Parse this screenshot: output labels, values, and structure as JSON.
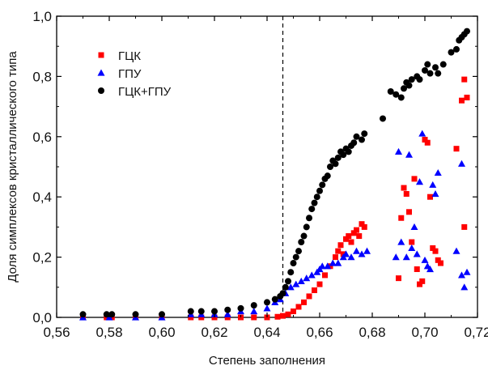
{
  "chart_data": {
    "type": "scatter",
    "xlabel": "Степень заполнения",
    "ylabel": "Доля симплексов кристаллического типа",
    "xlim": [
      0.56,
      0.72
    ],
    "ylim": [
      0.0,
      1.0
    ],
    "x_ticks": [
      "0,56",
      "0,58",
      "0,60",
      "0,62",
      "0,64",
      "0,66",
      "0,68",
      "0,70",
      "0,72"
    ],
    "y_ticks": [
      "0,0",
      "0,2",
      "0,4",
      "0,6",
      "0,8",
      "1,0"
    ],
    "grid": false,
    "legend_position": "top-left",
    "reference_line": {
      "x": 0.646,
      "style": "dashed",
      "color": "#000000"
    },
    "series": [
      {
        "name": "ГЦК",
        "marker": "square",
        "color": "#ff0000",
        "points": [
          [
            0.57,
            0.0
          ],
          [
            0.579,
            0.0
          ],
          [
            0.581,
            0.0
          ],
          [
            0.59,
            0.0
          ],
          [
            0.6,
            0.0
          ],
          [
            0.611,
            0.0
          ],
          [
            0.615,
            0.0
          ],
          [
            0.62,
            0.0
          ],
          [
            0.625,
            0.0
          ],
          [
            0.63,
            0.0
          ],
          [
            0.635,
            0.0
          ],
          [
            0.64,
            0.0
          ],
          [
            0.644,
            0.002
          ],
          [
            0.646,
            0.005
          ],
          [
            0.648,
            0.01
          ],
          [
            0.65,
            0.02
          ],
          [
            0.652,
            0.035
          ],
          [
            0.654,
            0.05
          ],
          [
            0.656,
            0.07
          ],
          [
            0.658,
            0.09
          ],
          [
            0.66,
            0.11
          ],
          [
            0.662,
            0.14
          ],
          [
            0.664,
            0.17
          ],
          [
            0.666,
            0.2
          ],
          [
            0.667,
            0.22
          ],
          [
            0.668,
            0.24
          ],
          [
            0.669,
            0.21
          ],
          [
            0.67,
            0.26
          ],
          [
            0.671,
            0.27
          ],
          [
            0.672,
            0.25
          ],
          [
            0.673,
            0.28
          ],
          [
            0.674,
            0.29
          ],
          [
            0.675,
            0.27
          ],
          [
            0.676,
            0.31
          ],
          [
            0.677,
            0.3
          ],
          [
            0.69,
            0.13
          ],
          [
            0.691,
            0.33
          ],
          [
            0.692,
            0.43
          ],
          [
            0.693,
            0.41
          ],
          [
            0.694,
            0.35
          ],
          [
            0.695,
            0.25
          ],
          [
            0.696,
            0.46
          ],
          [
            0.697,
            0.16
          ],
          [
            0.698,
            0.11
          ],
          [
            0.699,
            0.12
          ],
          [
            0.7,
            0.59
          ],
          [
            0.701,
            0.58
          ],
          [
            0.702,
            0.4
          ],
          [
            0.703,
            0.23
          ],
          [
            0.704,
            0.22
          ],
          [
            0.705,
            0.19
          ],
          [
            0.706,
            0.18
          ],
          [
            0.712,
            0.56
          ],
          [
            0.714,
            0.72
          ],
          [
            0.715,
            0.79
          ],
          [
            0.716,
            0.73
          ],
          [
            0.715,
            0.3
          ]
        ]
      },
      {
        "name": "ГПУ",
        "marker": "triangle",
        "color": "#0000ff",
        "points": [
          [
            0.57,
            0.0
          ],
          [
            0.58,
            0.0
          ],
          [
            0.59,
            0.0
          ],
          [
            0.6,
            0.0
          ],
          [
            0.611,
            0.01
          ],
          [
            0.615,
            0.01
          ],
          [
            0.62,
            0.01
          ],
          [
            0.625,
            0.01
          ],
          [
            0.63,
            0.02
          ],
          [
            0.635,
            0.02
          ],
          [
            0.64,
            0.03
          ],
          [
            0.643,
            0.05
          ],
          [
            0.645,
            0.06
          ],
          [
            0.647,
            0.08
          ],
          [
            0.649,
            0.1
          ],
          [
            0.651,
            0.11
          ],
          [
            0.653,
            0.12
          ],
          [
            0.655,
            0.13
          ],
          [
            0.657,
            0.14
          ],
          [
            0.659,
            0.15
          ],
          [
            0.66,
            0.16
          ],
          [
            0.661,
            0.17
          ],
          [
            0.663,
            0.17
          ],
          [
            0.665,
            0.18
          ],
          [
            0.667,
            0.18
          ],
          [
            0.669,
            0.2
          ],
          [
            0.67,
            0.21
          ],
          [
            0.672,
            0.2
          ],
          [
            0.674,
            0.22
          ],
          [
            0.676,
            0.21
          ],
          [
            0.678,
            0.22
          ],
          [
            0.689,
            0.2
          ],
          [
            0.69,
            0.55
          ],
          [
            0.691,
            0.25
          ],
          [
            0.693,
            0.2
          ],
          [
            0.694,
            0.54
          ],
          [
            0.695,
            0.23
          ],
          [
            0.696,
            0.3
          ],
          [
            0.697,
            0.21
          ],
          [
            0.698,
            0.45
          ],
          [
            0.699,
            0.61
          ],
          [
            0.7,
            0.19
          ],
          [
            0.701,
            0.17
          ],
          [
            0.702,
            0.16
          ],
          [
            0.703,
            0.44
          ],
          [
            0.704,
            0.41
          ],
          [
            0.705,
            0.48
          ],
          [
            0.712,
            0.22
          ],
          [
            0.714,
            0.51
          ],
          [
            0.715,
            0.1
          ],
          [
            0.716,
            0.15
          ],
          [
            0.714,
            0.14
          ]
        ]
      },
      {
        "name": "ГЦК+ГПУ",
        "marker": "circle",
        "color": "#000000",
        "points": [
          [
            0.57,
            0.01
          ],
          [
            0.579,
            0.01
          ],
          [
            0.581,
            0.01
          ],
          [
            0.59,
            0.01
          ],
          [
            0.6,
            0.01
          ],
          [
            0.611,
            0.02
          ],
          [
            0.615,
            0.02
          ],
          [
            0.62,
            0.02
          ],
          [
            0.625,
            0.025
          ],
          [
            0.63,
            0.03
          ],
          [
            0.635,
            0.04
          ],
          [
            0.64,
            0.05
          ],
          [
            0.643,
            0.06
          ],
          [
            0.645,
            0.07
          ],
          [
            0.646,
            0.08
          ],
          [
            0.647,
            0.1
          ],
          [
            0.648,
            0.12
          ],
          [
            0.649,
            0.15
          ],
          [
            0.65,
            0.18
          ],
          [
            0.651,
            0.2
          ],
          [
            0.652,
            0.22
          ],
          [
            0.653,
            0.25
          ],
          [
            0.654,
            0.27
          ],
          [
            0.655,
            0.3
          ],
          [
            0.656,
            0.33
          ],
          [
            0.657,
            0.36
          ],
          [
            0.658,
            0.38
          ],
          [
            0.659,
            0.4
          ],
          [
            0.66,
            0.42
          ],
          [
            0.661,
            0.44
          ],
          [
            0.662,
            0.46
          ],
          [
            0.663,
            0.47
          ],
          [
            0.664,
            0.5
          ],
          [
            0.665,
            0.52
          ],
          [
            0.666,
            0.51
          ],
          [
            0.667,
            0.53
          ],
          [
            0.668,
            0.55
          ],
          [
            0.669,
            0.54
          ],
          [
            0.67,
            0.56
          ],
          [
            0.671,
            0.55
          ],
          [
            0.672,
            0.57
          ],
          [
            0.673,
            0.58
          ],
          [
            0.674,
            0.6
          ],
          [
            0.676,
            0.59
          ],
          [
            0.677,
            0.61
          ],
          [
            0.684,
            0.66
          ],
          [
            0.687,
            0.75
          ],
          [
            0.689,
            0.74
          ],
          [
            0.691,
            0.73
          ],
          [
            0.692,
            0.76
          ],
          [
            0.693,
            0.78
          ],
          [
            0.694,
            0.77
          ],
          [
            0.695,
            0.79
          ],
          [
            0.697,
            0.8
          ],
          [
            0.698,
            0.79
          ],
          [
            0.7,
            0.82
          ],
          [
            0.701,
            0.84
          ],
          [
            0.702,
            0.81
          ],
          [
            0.704,
            0.83
          ],
          [
            0.705,
            0.81
          ],
          [
            0.707,
            0.84
          ],
          [
            0.71,
            0.88
          ],
          [
            0.712,
            0.89
          ],
          [
            0.713,
            0.92
          ],
          [
            0.714,
            0.93
          ],
          [
            0.715,
            0.94
          ],
          [
            0.716,
            0.95
          ]
        ]
      }
    ]
  }
}
